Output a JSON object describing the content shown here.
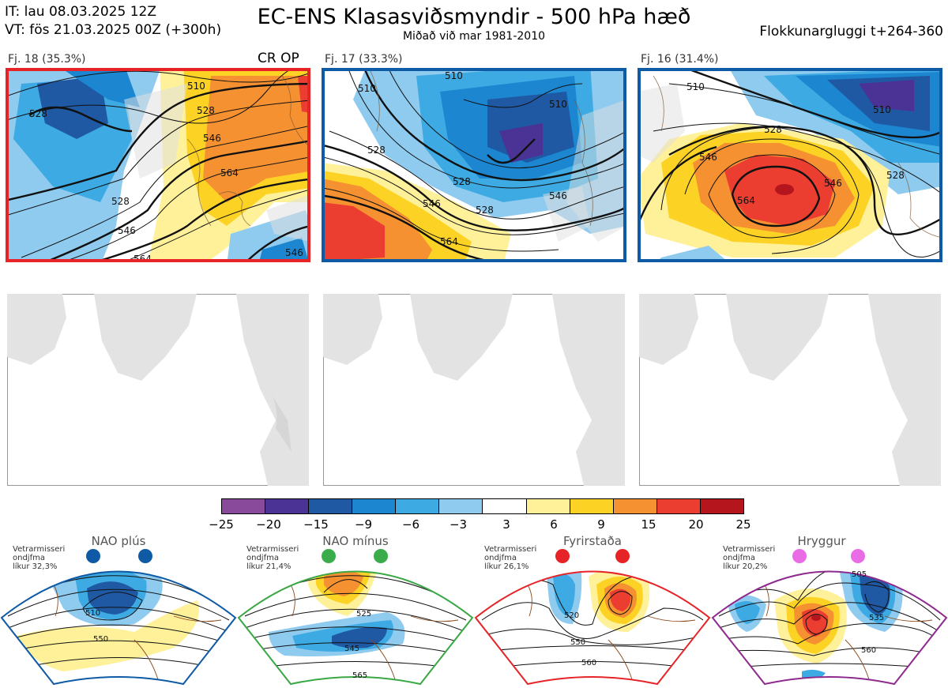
{
  "header": {
    "init_time": "IT: lau 08.03.2025 12Z",
    "valid_time": "VT: fös 21.03.2025 00Z  (+300h)",
    "title": "EC-ENS Klasasviðsmyndir - 500 hPa hæð",
    "subtitle": "Miðað við mar 1981-2010",
    "window": "Flokkunargluggi t+264-360"
  },
  "clusters": [
    {
      "label": "Fj. 18 (35.3%)",
      "tag": "CR OP",
      "border_color": "#e62428",
      "contours": [
        "510",
        "528",
        "528",
        "546",
        "564",
        "528",
        "546",
        "564",
        "546"
      ]
    },
    {
      "label": "Fj. 17 (33.3%)",
      "tag": "",
      "border_color": "#0f5aa5",
      "contours": [
        "510",
        "510",
        "510",
        "528",
        "528",
        "528",
        "546",
        "546",
        "564"
      ]
    },
    {
      "label": "Fj. 16 (31.4%)",
      "tag": "",
      "border_color": "#0f5aa5",
      "contours": [
        "510",
        "510",
        "528",
        "528",
        "546",
        "546",
        "564"
      ]
    }
  ],
  "legend": {
    "labels": [
      "−25",
      "−20",
      "−15",
      "−9",
      "−6",
      "−3",
      "3",
      "6",
      "9",
      "15",
      "20",
      "25"
    ],
    "colors": [
      "#8a4a9c",
      "#4b3396",
      "#1f58a3",
      "#1c86d0",
      "#3daae3",
      "#8fcbef",
      "#ffffff",
      "#fff19a",
      "#fcd325",
      "#f59130",
      "#ec3d31",
      "#b5161d"
    ]
  },
  "regimes": [
    {
      "title": "NAO plús",
      "note_line1": "Vetrarmisseri",
      "note_line2": "ondjfma",
      "note_line3": "líkur 32,3%",
      "color": "#0f5aa5",
      "dot_color": "#0f5aa5",
      "contours": [
        "510",
        "550"
      ]
    },
    {
      "title": "NAO mínus",
      "note_line1": "Vetrarmisseri",
      "note_line2": "ondjfma",
      "note_line3": "líkur 21,4%",
      "color": "#3aa745",
      "dot_color": "#3aad4a",
      "contours": [
        "525",
        "545",
        "565"
      ]
    },
    {
      "title": "Fyrirstaða",
      "note_line1": "Vetrarmisseri",
      "note_line2": "ondjfma",
      "note_line3": "líkur 26,1%",
      "color": "#e62428",
      "dot_color": "#e62428",
      "contours": [
        "520",
        "550",
        "560"
      ]
    },
    {
      "title": "Hryggur",
      "note_line1": "Vetrarmisseri",
      "note_line2": "ondjfma",
      "note_line3": "líkur 20,2%",
      "color": "#8e2a8e",
      "dot_color": "#ea6be6",
      "contours": [
        "505",
        "535",
        "560"
      ]
    }
  ]
}
